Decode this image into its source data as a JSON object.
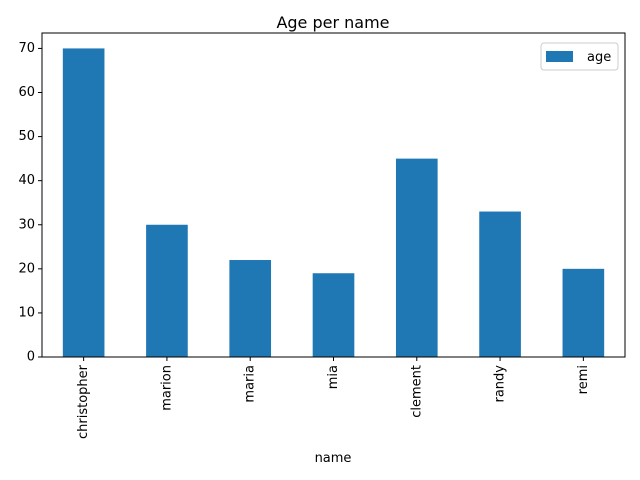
{
  "chart_data": {
    "type": "bar",
    "title": "Age per name",
    "xlabel": "name",
    "ylabel": "",
    "categories": [
      "christopher",
      "marion",
      "maria",
      "mia",
      "clement",
      "randy",
      "remi"
    ],
    "series": [
      {
        "name": "age",
        "values": [
          70,
          30,
          22,
          19,
          45,
          33,
          20
        ]
      }
    ],
    "ylim": [
      0,
      73.5
    ],
    "yticks": [
      0,
      10,
      20,
      30,
      40,
      50,
      60,
      70
    ],
    "bar_color": "#1f77b4",
    "legend": "top-right",
    "grid": false
  }
}
